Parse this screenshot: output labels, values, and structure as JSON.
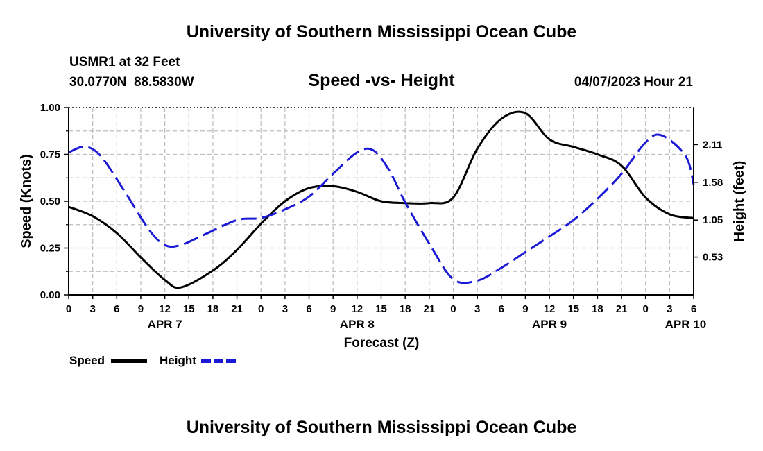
{
  "chart_data": {
    "type": "line",
    "title": "University of Southern Mississippi Ocean Cube",
    "footer_title": "University of Southern Mississippi Ocean Cube",
    "station": "USMR1 at 32 Feet",
    "coordinates": "30.0770N  88.5830W",
    "subtitle": "Speed -vs- Height",
    "timestamp": "04/07/2023 Hour 21",
    "xlabel": "Forecast (Z)",
    "ylabel_left": "Speed (Knots)",
    "ylabel_right": "Height (feet)",
    "x_range_hours": [
      0,
      78
    ],
    "ylim_left": [
      0,
      1
    ],
    "ylim_right": [
      0,
      2.63
    ],
    "x_tick_labels": [
      "0",
      "3",
      "6",
      "9",
      "12",
      "15",
      "18",
      "21",
      "0",
      "3",
      "6",
      "9",
      "12",
      "15",
      "18",
      "21",
      "0",
      "3",
      "6",
      "9",
      "12",
      "15",
      "18",
      "21",
      "0",
      "3",
      "6"
    ],
    "y_ticks_left": [
      {
        "value": 0.0,
        "label": "0.00"
      },
      {
        "value": 0.25,
        "label": "0.25"
      },
      {
        "value": 0.5,
        "label": "0.50"
      },
      {
        "value": 0.75,
        "label": "0.75"
      },
      {
        "value": 1.0,
        "label": "1.00"
      }
    ],
    "y_ticks_right": [
      {
        "value": 0.53,
        "label": "0.53"
      },
      {
        "value": 1.05,
        "label": "1.05"
      },
      {
        "value": 1.58,
        "label": "1.58"
      },
      {
        "value": 2.11,
        "label": "2.11"
      }
    ],
    "day_labels": [
      {
        "hour": 12,
        "label": "APR 7"
      },
      {
        "hour": 36,
        "label": "APR 8"
      },
      {
        "hour": 60,
        "label": "APR 9"
      },
      {
        "hour": 77,
        "label": "APR 10"
      }
    ],
    "series": [
      {
        "name": "Speed",
        "axis": "left",
        "color": "#000000",
        "style": "solid",
        "x": [
          0,
          3,
          6,
          9,
          12,
          14,
          18,
          21,
          24,
          27,
          30,
          33,
          36,
          39,
          42,
          45,
          48,
          51,
          54,
          57,
          60,
          63,
          66,
          69,
          72,
          75,
          78
        ],
        "y": [
          0.47,
          0.42,
          0.33,
          0.2,
          0.08,
          0.04,
          0.13,
          0.24,
          0.38,
          0.5,
          0.57,
          0.58,
          0.55,
          0.5,
          0.49,
          0.49,
          0.52,
          0.78,
          0.94,
          0.97,
          0.83,
          0.79,
          0.75,
          0.69,
          0.52,
          0.43,
          0.41
        ]
      },
      {
        "name": "Height",
        "axis": "right",
        "color": "#1a1ad6",
        "style": "dashed",
        "x": [
          0,
          2,
          4,
          7,
          10,
          12,
          14,
          17,
          21,
          24,
          27,
          30,
          33,
          36,
          38,
          40,
          42,
          45,
          48,
          51,
          54,
          57,
          60,
          63,
          66,
          69,
          72,
          74,
          77,
          78
        ],
        "y": [
          2.0,
          2.08,
          1.95,
          1.45,
          0.92,
          0.7,
          0.7,
          0.85,
          1.05,
          1.08,
          1.2,
          1.38,
          1.7,
          2.0,
          2.03,
          1.75,
          1.3,
          0.72,
          0.22,
          0.2,
          0.38,
          0.6,
          0.82,
          1.05,
          1.35,
          1.7,
          2.14,
          2.24,
          1.95,
          1.55
        ]
      }
    ],
    "legend": [
      {
        "label": "Speed",
        "color": "#000000",
        "style": "solid"
      },
      {
        "label": "Height",
        "color": "#1a1ad6",
        "style": "dashed"
      }
    ]
  }
}
